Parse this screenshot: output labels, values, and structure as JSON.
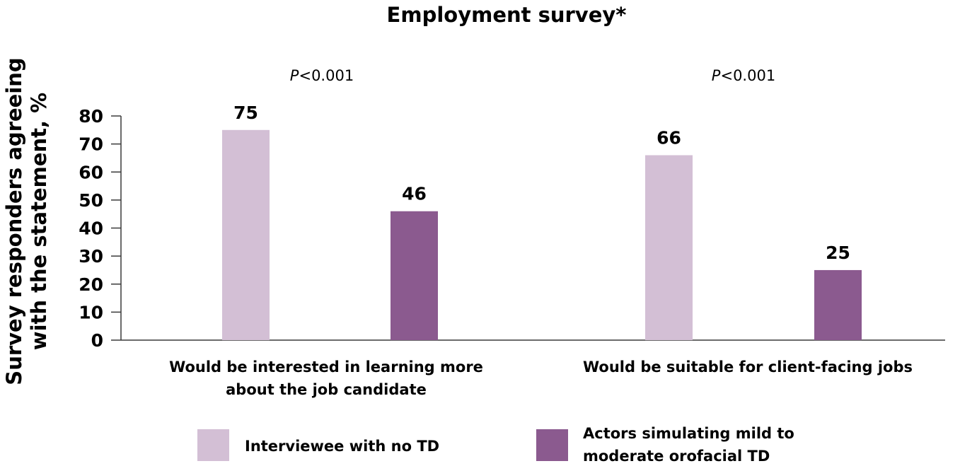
{
  "chart_data": {
    "type": "bar",
    "title": "Employment survey*",
    "ylabel": [
      "Survey responders agreeing",
      "with the statement, %"
    ],
    "xlabel": "",
    "ylim": [
      0,
      80
    ],
    "yticks": [
      0,
      10,
      20,
      30,
      40,
      50,
      60,
      70,
      80
    ],
    "grid": false,
    "categories": [
      [
        "Would be interested in learning more",
        "about the job candidate"
      ],
      [
        "Would be suitable for client-facing jobs"
      ]
    ],
    "annotations": [
      {
        "italic": "P",
        "text": "<0.001"
      },
      {
        "italic": "P",
        "text": "<0.001"
      }
    ],
    "series": [
      {
        "name": "Interviewee with no TD",
        "color": "#d3bfd5",
        "values": [
          75,
          66
        ]
      },
      {
        "name": "Actors simulating mild to moderate orofacial TD",
        "name_lines": [
          "Actors simulating mild to",
          "moderate orofacial TD"
        ],
        "color": "#8b5a8f",
        "values": [
          46,
          25
        ]
      }
    ],
    "legend_position": "bottom"
  }
}
